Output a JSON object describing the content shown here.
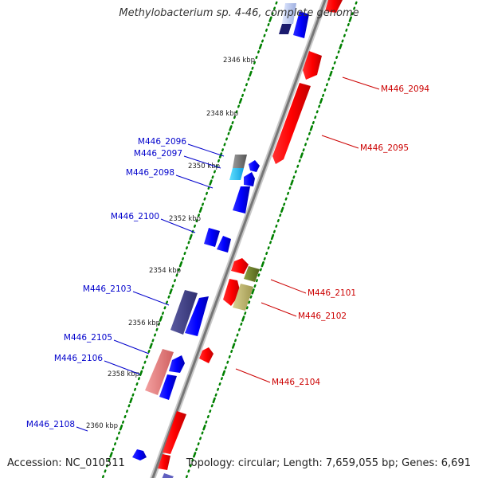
{
  "title": "Methylobacterium sp. 4-46, complete genome",
  "footer": {
    "accession": "Accession: NC_010511",
    "stats": "Topology: circular; Length: 7,659,055 bp; Genes: 6,691"
  },
  "colors": {
    "backbone": "#808080",
    "tick_dots": "#008000",
    "forward_gene_label": "#cc0000",
    "reverse_gene_label": "#0000cc"
  },
  "scale_labels": [
    "2346 kbp",
    "2348 kbp",
    "2350 kbp",
    "2352 kbp",
    "2354 kbp",
    "2356 kbp",
    "2358 kbp",
    "2360 kbp"
  ],
  "gene_labels": {
    "forward": [
      "M446_2094",
      "M446_2095",
      "M446_2101",
      "M446_2102",
      "M446_2104"
    ],
    "reverse": [
      "M446_2096",
      "M446_2097",
      "M446_2098",
      "M446_2100",
      "M446_2103",
      "M446_2105",
      "M446_2106",
      "M446_2108"
    ]
  }
}
